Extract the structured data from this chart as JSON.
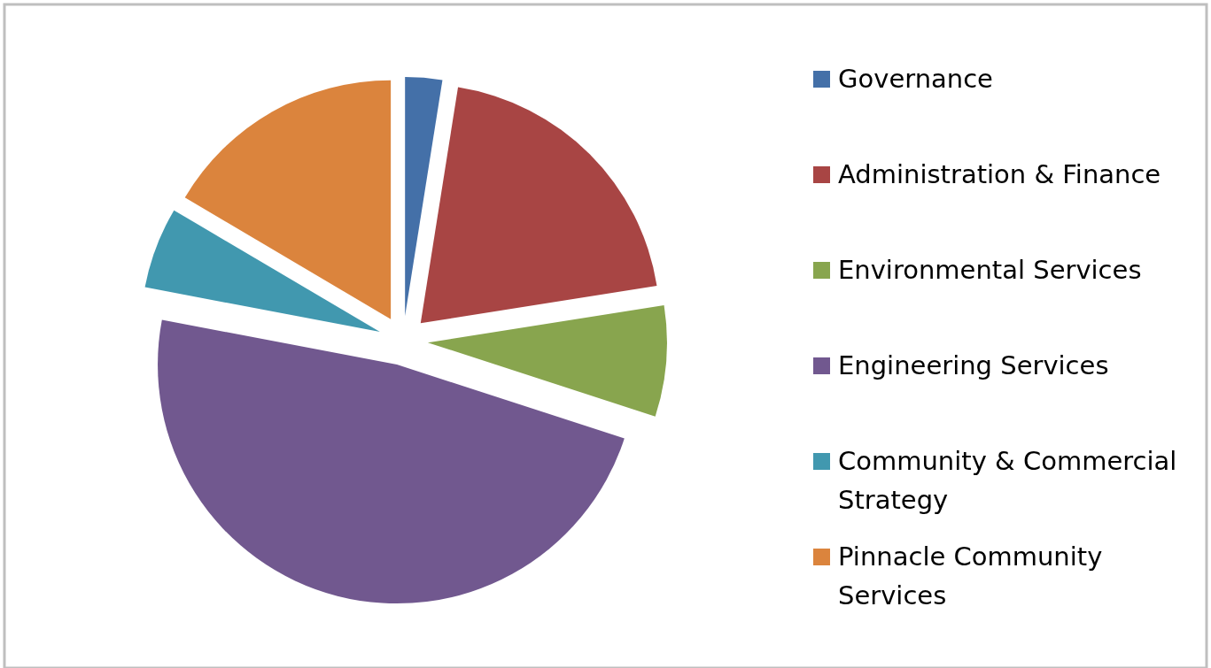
{
  "chart_data": {
    "type": "pie",
    "categories": [
      "Governance",
      "Administration & Finance",
      "Environmental Services",
      "Engineering Services",
      "Community & Commercial Strategy",
      "Pinnacle Community Services"
    ],
    "values": [
      2.5,
      20,
      7.5,
      48,
      5.5,
      16.5
    ],
    "colors": [
      "#4470a8",
      "#a84544",
      "#88a54e",
      "#71588f",
      "#4198af",
      "#db843d"
    ],
    "legend": "right"
  }
}
